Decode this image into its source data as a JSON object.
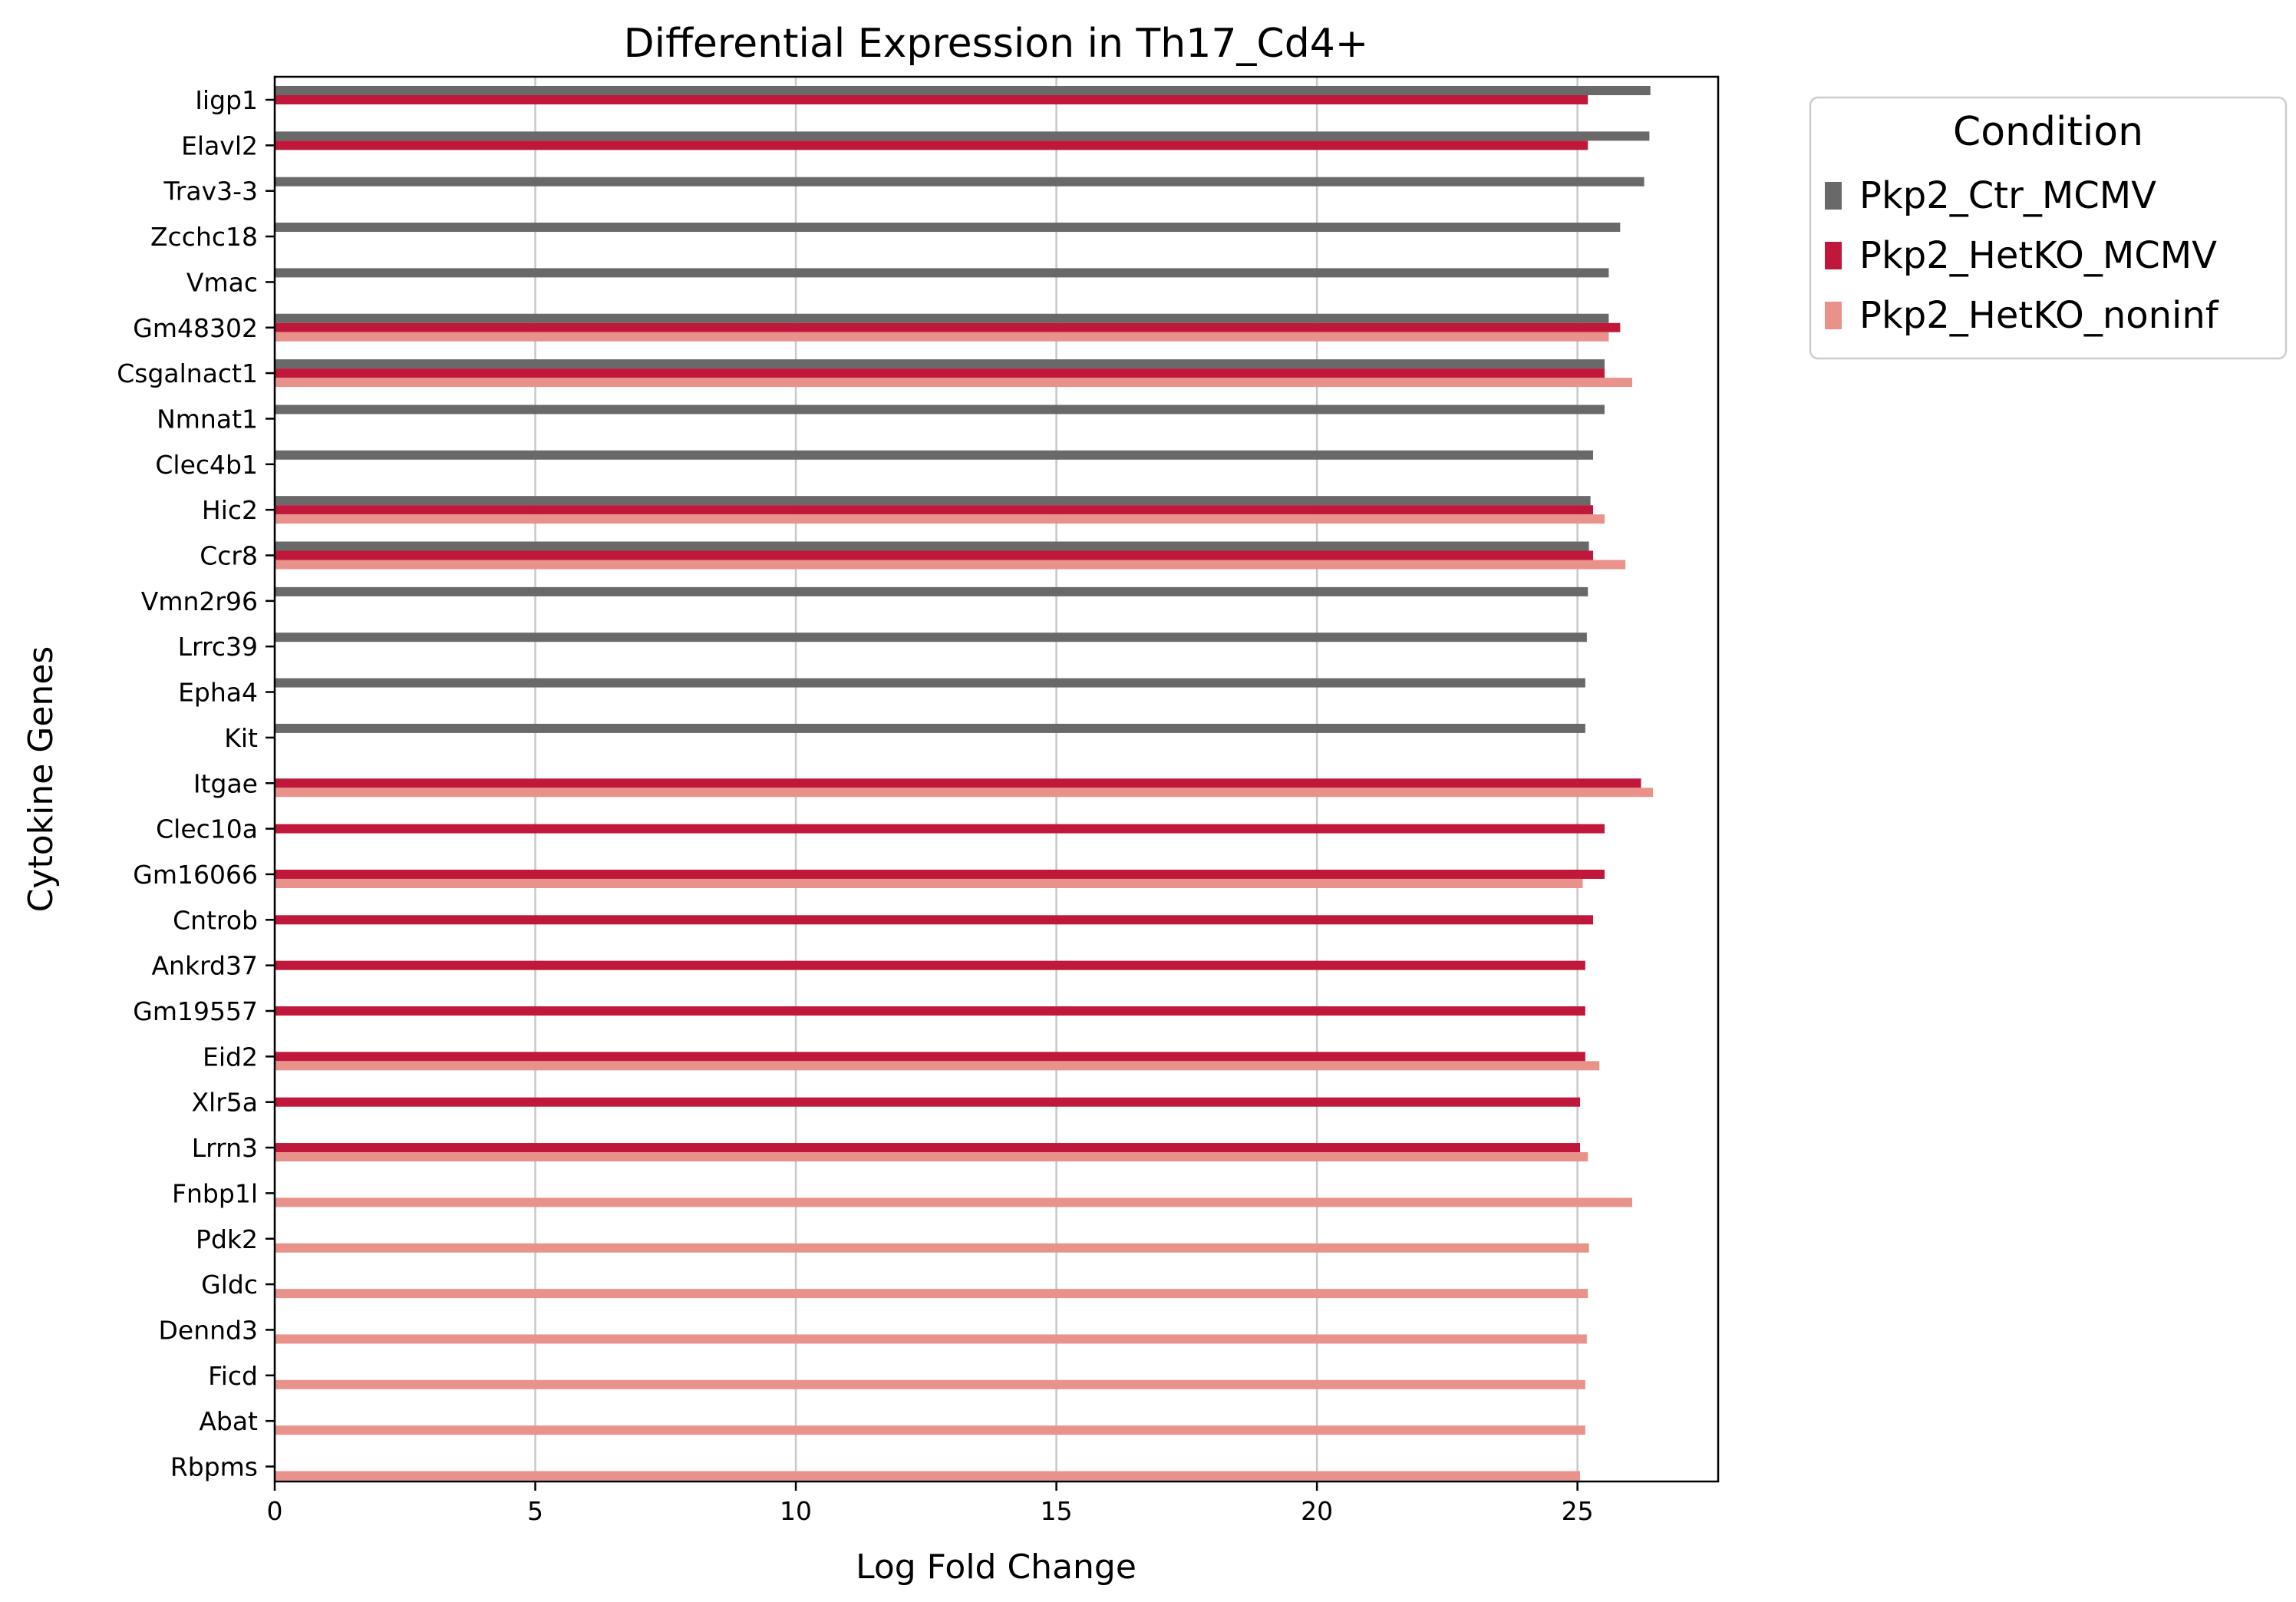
{
  "chart_data": {
    "type": "bar",
    "orientation": "horizontal",
    "title": "Differential Expression in Th17_Cd4+",
    "xlabel": "Log Fold Change",
    "ylabel": "Cytokine Genes",
    "xlim": [
      0,
      27.7
    ],
    "xticks": [
      0,
      5,
      10,
      15,
      20,
      25
    ],
    "grid": "vertical",
    "legend": {
      "title": "Condition",
      "placement": "outside-top-right"
    },
    "categories": [
      "Iigp1",
      "Elavl2",
      "Trav3-3",
      "Zcchc18",
      "Vmac",
      "Gm48302",
      "Csgalnact1",
      "Nmnat1",
      "Clec4b1",
      "Hic2",
      "Ccr8",
      "Vmn2r96",
      "Lrrc39",
      "Epha4",
      "Kit",
      "Itgae",
      "Clec10a",
      "Gm16066",
      "Cntrob",
      "Ankrd37",
      "Gm19557",
      "Eid2",
      "Xlr5a",
      "Lrrn3",
      "Fnbp1l",
      "Pdk2",
      "Gldc",
      "Dennd3",
      "Ficd",
      "Abat",
      "Rbpms"
    ],
    "series": [
      {
        "name": "Pkp2_Ctr_MCMV",
        "color": "#696969",
        "values": [
          26.4,
          26.38,
          26.28,
          25.82,
          25.6,
          25.6,
          25.52,
          25.52,
          25.3,
          25.25,
          25.22,
          25.2,
          25.18,
          25.15,
          25.15,
          null,
          null,
          null,
          null,
          null,
          null,
          null,
          null,
          null,
          null,
          null,
          null,
          null,
          null,
          null,
          null
        ]
      },
      {
        "name": "Pkp2_HetKO_MCMV",
        "color": "#c0183a",
        "values": [
          25.2,
          25.2,
          null,
          null,
          null,
          25.82,
          25.52,
          null,
          null,
          25.3,
          25.3,
          null,
          null,
          null,
          null,
          26.22,
          25.52,
          25.52,
          25.3,
          25.15,
          25.15,
          25.15,
          25.05,
          25.05,
          null,
          null,
          null,
          null,
          null,
          null,
          null
        ]
      },
      {
        "name": "Pkp2_HetKO_noninf",
        "color": "#e8928b",
        "values": [
          null,
          null,
          null,
          null,
          null,
          25.6,
          26.05,
          null,
          null,
          25.52,
          25.92,
          null,
          null,
          null,
          null,
          26.45,
          null,
          25.1,
          null,
          null,
          null,
          25.42,
          null,
          25.2,
          26.05,
          25.22,
          25.2,
          25.18,
          25.15,
          25.15,
          25.05
        ]
      }
    ]
  }
}
